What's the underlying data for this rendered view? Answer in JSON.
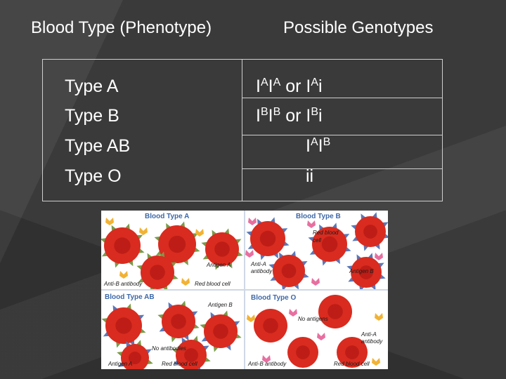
{
  "headers": {
    "phenotype": "Blood Type (Phenotype)",
    "genotypes": "Possible Genotypes"
  },
  "rows": [
    {
      "phenotype": "Type A",
      "genotype": [
        {
          "t": "I"
        },
        {
          "t": "A",
          "sup": true
        },
        {
          "t": "I"
        },
        {
          "t": "A",
          "sup": true
        },
        {
          "t": " or I"
        },
        {
          "t": "A",
          "sup": true
        },
        {
          "t": "i"
        }
      ]
    },
    {
      "phenotype": "Type B",
      "genotype": [
        {
          "t": "I"
        },
        {
          "t": "B",
          "sup": true
        },
        {
          "t": "I"
        },
        {
          "t": "B",
          "sup": true
        },
        {
          "t": " or I"
        },
        {
          "t": "B",
          "sup": true
        },
        {
          "t": "i"
        }
      ]
    },
    {
      "phenotype": "Type AB",
      "genotype": [
        {
          "t": "I"
        },
        {
          "t": "A",
          "sup": true
        },
        {
          "t": "I"
        },
        {
          "t": "B",
          "sup": true
        }
      ]
    },
    {
      "phenotype": "Type O",
      "genotype": [
        {
          "t": "ii"
        }
      ]
    }
  ],
  "figure": {
    "quadrants": {
      "a": {
        "title": "Blood Type A",
        "labels": {
          "antigen": "Antigen A",
          "antibody": "Anti-B antibody",
          "cell": "Red blood cell"
        },
        "antigen_color": "#7a9a4a",
        "antibody_color": "#f2b233"
      },
      "b": {
        "title": "Blood Type B",
        "labels": {
          "cell": "Red blood cell",
          "antibody": "Anti-A antibody",
          "antigen": "Antigen B"
        },
        "antigen_color": "#5a78b8",
        "antibody_color": "#e86fa0"
      },
      "ab": {
        "title": "Blood Type AB",
        "labels": {
          "antigen_b": "Antigen B",
          "antibodies": "No antibodies",
          "antigen_a": "Antigen A",
          "cell": "Red blood cell"
        },
        "antigen_color": "#7a9a4a",
        "antigen2_color": "#5a78b8"
      },
      "o": {
        "title": "Blood Type O",
        "labels": {
          "antigens": "No antigens",
          "antibody_a": "Anti-A antibody",
          "antibody_b": "Anti-B antibody",
          "cell": "Red blood cell"
        },
        "antibody_color": "#f2b233",
        "antibody2_color": "#e86fa0"
      }
    },
    "cell_color": "#d92b1f",
    "cell_center_color": "#b01812",
    "title_color": "#3d68a8"
  }
}
